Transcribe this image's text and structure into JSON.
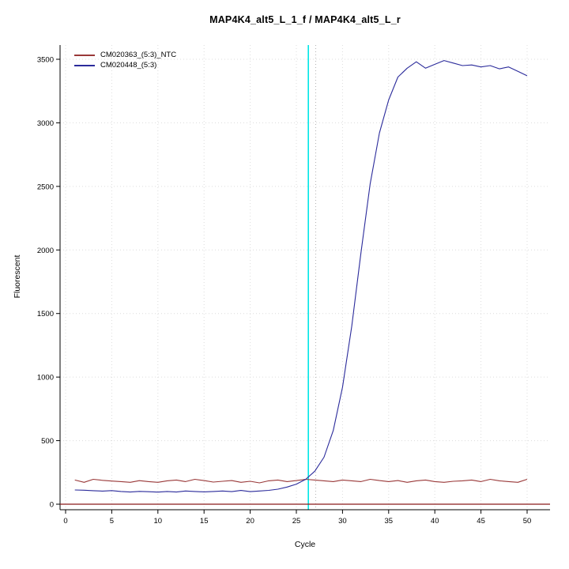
{
  "chart_data": {
    "type": "line",
    "title": "MAP4K4_alt5_L_1_f / MAP4K4_alt5_L_r",
    "xlabel": "Cycle",
    "ylabel": "Fluorescent",
    "xlim": [
      0,
      50
    ],
    "ylim": [
      0,
      3500
    ],
    "xticks": [
      0,
      5,
      10,
      15,
      20,
      25,
      30,
      35,
      40,
      45,
      50
    ],
    "yticks": [
      0,
      500,
      1000,
      1500,
      2000,
      2500,
      3000,
      3500
    ],
    "grid": true,
    "legend_position": "top-left",
    "threshold_line": {
      "x": 26.3,
      "color": "#00e6e6"
    },
    "ct_line": {
      "x": 27.1,
      "style": "dotted",
      "color": "#b3b3b3"
    },
    "baseline": {
      "y": 0,
      "color": "#8b1a1a"
    },
    "x": [
      1,
      2,
      3,
      4,
      5,
      6,
      7,
      8,
      9,
      10,
      11,
      12,
      13,
      14,
      15,
      16,
      17,
      18,
      19,
      20,
      21,
      22,
      23,
      24,
      25,
      26,
      27,
      28,
      29,
      30,
      31,
      32,
      33,
      34,
      35,
      36,
      37,
      38,
      39,
      40,
      41,
      42,
      43,
      44,
      45,
      46,
      47,
      48,
      49,
      50
    ],
    "series": [
      {
        "name": "CM020363_(5:3)_NTC",
        "color": "#993838",
        "values": [
          190,
          172,
          196,
          188,
          182,
          178,
          172,
          185,
          178,
          172,
          184,
          190,
          178,
          196,
          186,
          174,
          180,
          186,
          172,
          180,
          168,
          184,
          190,
          178,
          186,
          196,
          190,
          184,
          178,
          190,
          184,
          178,
          196,
          186,
          178,
          186,
          172,
          184,
          190,
          178,
          172,
          180,
          184,
          190,
          178,
          196,
          184,
          178,
          172,
          196
        ]
      },
      {
        "name": "CM020448_(5:3)",
        "color": "#2b2b9b",
        "values": [
          112,
          110,
          106,
          103,
          107,
          100,
          96,
          101,
          98,
          95,
          100,
          96,
          104,
          100,
          97,
          100,
          104,
          99,
          108,
          99,
          104,
          109,
          118,
          135,
          158,
          195,
          260,
          370,
          580,
          920,
          1400,
          1980,
          2520,
          2920,
          3180,
          3360,
          3430,
          3480,
          3430,
          3460,
          3490,
          3470,
          3450,
          3455,
          3440,
          3450,
          3425,
          3440,
          3405,
          3370
        ]
      }
    ]
  }
}
